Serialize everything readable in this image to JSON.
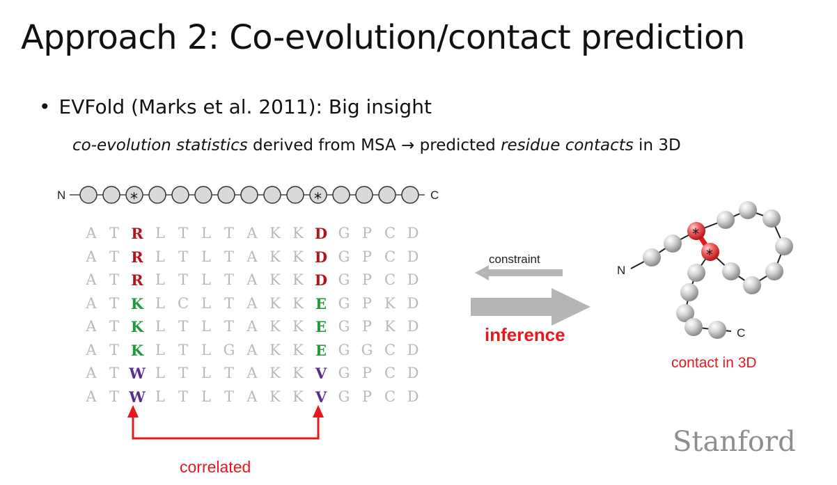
{
  "title": "Approach 2: Co-evolution/contact prediction",
  "bullet": {
    "marker": "•",
    "text": "EVFold (Marks et al. 2011): Big insight"
  },
  "subline": {
    "part1_italic": "co-evolution statistics",
    "part2": " derived from MSA ",
    "arrow": "→",
    "part3": " predicted ",
    "part4_italic": "residue contacts",
    "part5": " in 3D"
  },
  "chain_1d": {
    "n_label": "N",
    "c_label": "C",
    "star": "*"
  },
  "msa": {
    "rows": [
      [
        "A",
        "T",
        "R",
        "L",
        "T",
        "L",
        "T",
        "A",
        "K",
        "K",
        "D",
        "G",
        "P",
        "C",
        "D"
      ],
      [
        "A",
        "T",
        "R",
        "L",
        "T",
        "L",
        "T",
        "A",
        "K",
        "K",
        "D",
        "G",
        "P",
        "C",
        "D"
      ],
      [
        "A",
        "T",
        "R",
        "L",
        "T",
        "L",
        "T",
        "A",
        "K",
        "K",
        "D",
        "G",
        "P",
        "C",
        "D"
      ],
      [
        "A",
        "T",
        "K",
        "L",
        "C",
        "L",
        "T",
        "A",
        "K",
        "K",
        "E",
        "G",
        "P",
        "K",
        "D"
      ],
      [
        "A",
        "T",
        "K",
        "L",
        "T",
        "L",
        "T",
        "A",
        "K",
        "K",
        "E",
        "G",
        "P",
        "K",
        "D"
      ],
      [
        "A",
        "T",
        "K",
        "L",
        "T",
        "L",
        "G",
        "A",
        "K",
        "K",
        "E",
        "G",
        "G",
        "C",
        "D"
      ],
      [
        "A",
        "T",
        "W",
        "L",
        "T",
        "L",
        "T",
        "A",
        "K",
        "K",
        "V",
        "G",
        "P",
        "C",
        "D"
      ],
      [
        "A",
        "T",
        "W",
        "L",
        "T",
        "L",
        "T",
        "A",
        "K",
        "K",
        "V",
        "G",
        "P",
        "C",
        "D"
      ]
    ],
    "highlight_colors": [
      "red",
      "red",
      "red",
      "green",
      "green",
      "green",
      "purple",
      "purple"
    ],
    "color_hex": {
      "red": "#b3141c",
      "green": "#1f9a3a",
      "purple": "#5a2d91",
      "gray": "#b9b9b9"
    }
  },
  "correlated_label": "correlated",
  "constraint_label": "constraint",
  "inference_label": "inference",
  "structure_3d": {
    "n_label": "N",
    "c_label": "C",
    "star": "*",
    "contact_label": "contact in 3D"
  },
  "logo": "Stanford"
}
